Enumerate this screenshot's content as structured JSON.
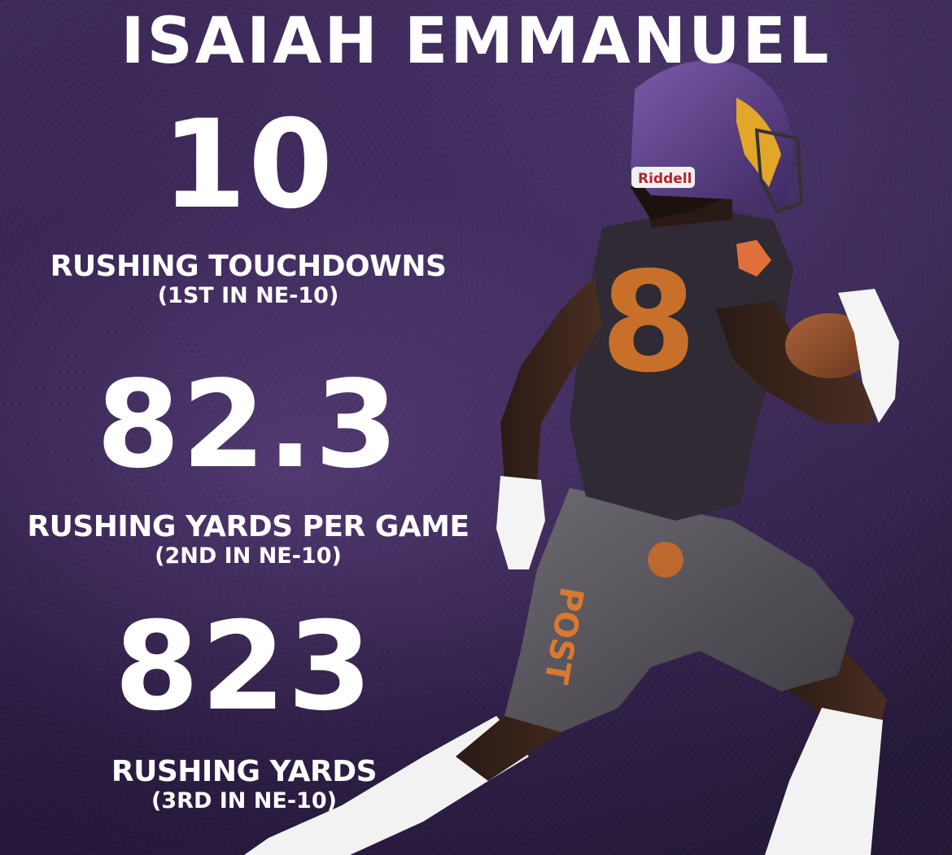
{
  "title": "ISAIAH EMMANUEL",
  "colors": {
    "background": "#33234c",
    "text": "#ffffff",
    "helmet": "#5b3f86",
    "jersey": "#2f2a33",
    "numeral": "#c8702a"
  },
  "player": {
    "helmet_brand": "Riddell",
    "jersey_number": "8",
    "pants_lettering": "POST"
  },
  "stats": [
    {
      "value": "10",
      "label": "RUSHING TOUCHDOWNS",
      "rank": "(1ST IN NE-10)"
    },
    {
      "value": "82.3",
      "label": "RUSHING YARDS PER GAME",
      "rank": "(2ND IN NE-10)"
    },
    {
      "value": "823",
      "label": "RUSHING YARDS",
      "rank": "(3RD IN NE-10)"
    }
  ]
}
